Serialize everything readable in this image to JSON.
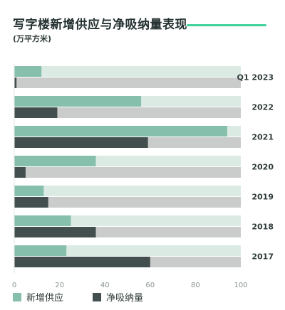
{
  "header": {
    "title": "写字楼新增供应与净吸纳量表现",
    "subtitle": "(万平方米)"
  },
  "colors": {
    "supply": "#86bfac",
    "absorption": "#434f4e",
    "track_supply": "#dbebe4",
    "track_absorption": "#c9cccb",
    "accent": "#3ed39a"
  },
  "chart_data": {
    "type": "bar",
    "orientation": "horizontal",
    "categories": [
      "Q1 2023",
      "2022",
      "2021",
      "2020",
      "2019",
      "2018",
      "2017"
    ],
    "series": [
      {
        "name": "新增供应",
        "values": [
          12,
          56,
          94,
          36,
          13,
          25,
          23
        ]
      },
      {
        "name": "净吸纳量",
        "values": [
          1,
          19,
          59,
          5,
          15,
          36,
          60
        ]
      }
    ],
    "xlim": [
      0,
      100
    ],
    "xticks": [
      0,
      20,
      40,
      60,
      80,
      100
    ],
    "legend_position": "bottom",
    "grid": false
  }
}
